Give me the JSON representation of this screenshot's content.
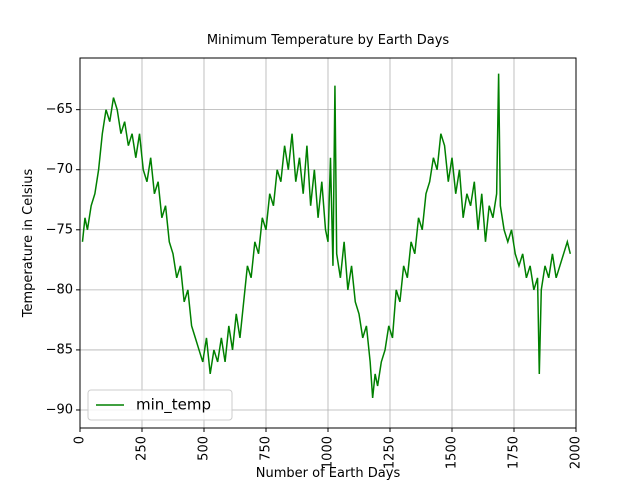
{
  "chart_data": {
    "type": "line",
    "title": "Minimum Temperature by Earth Days",
    "x_label": "Number of Earth Days",
    "y_label": "Temperature in Celsius",
    "xlim": [
      0,
      2000
    ],
    "xticks": [
      0,
      250,
      500,
      750,
      1000,
      1250,
      1500,
      1750,
      2000
    ],
    "ylim": [
      -91.5,
      -60.7
    ],
    "yticks": [
      {
        "value": -90,
        "label": "−90"
      },
      {
        "value": -85,
        "label": "−85"
      },
      {
        "value": -80,
        "label": "−80"
      },
      {
        "value": -75,
        "label": "−75"
      },
      {
        "value": -70,
        "label": "−70"
      },
      {
        "value": -65,
        "label": "−65"
      }
    ],
    "grid": true,
    "legend": "lower left",
    "x": [
      10,
      20,
      30,
      45,
      60,
      75,
      90,
      105,
      120,
      135,
      150,
      165,
      180,
      195,
      210,
      225,
      240,
      255,
      270,
      285,
      300,
      315,
      330,
      345,
      360,
      375,
      390,
      405,
      420,
      435,
      450,
      465,
      480,
      495,
      510,
      525,
      540,
      555,
      570,
      585,
      600,
      615,
      630,
      645,
      660,
      675,
      690,
      705,
      720,
      735,
      750,
      765,
      780,
      795,
      810,
      825,
      840,
      855,
      870,
      885,
      900,
      915,
      930,
      945,
      960,
      975,
      990,
      1000,
      1010,
      1020,
      1028,
      1035,
      1050,
      1065,
      1080,
      1095,
      1110,
      1125,
      1140,
      1155,
      1170,
      1180,
      1190,
      1200,
      1215,
      1230,
      1245,
      1260,
      1275,
      1290,
      1305,
      1320,
      1335,
      1350,
      1365,
      1380,
      1395,
      1410,
      1425,
      1440,
      1455,
      1470,
      1485,
      1500,
      1515,
      1530,
      1545,
      1560,
      1575,
      1590,
      1605,
      1620,
      1635,
      1650,
      1665,
      1680,
      1688,
      1695,
      1710,
      1725,
      1740,
      1755,
      1770,
      1785,
      1800,
      1815,
      1830,
      1845,
      1852,
      1860,
      1875,
      1890,
      1905,
      1920,
      1935,
      1950,
      1965,
      1977
    ],
    "series": [
      {
        "name": "min_temp",
        "color": "#008000",
        "values": [
          -76,
          -74,
          -75,
          -73,
          -72,
          -70,
          -67,
          -65,
          -66,
          -64,
          -65,
          -67,
          -66,
          -68,
          -67,
          -69,
          -67,
          -70,
          -71,
          -69,
          -72,
          -71,
          -74,
          -73,
          -76,
          -77,
          -79,
          -78,
          -81,
          -80,
          -83,
          -84,
          -85,
          -86,
          -84,
          -87,
          -85,
          -86,
          -84,
          -86,
          -83,
          -85,
          -82,
          -84,
          -81,
          -78,
          -79,
          -76,
          -77,
          -74,
          -75,
          -72,
          -73,
          -70,
          -71,
          -68,
          -70,
          -67,
          -71,
          -69,
          -72,
          -68,
          -73,
          -70,
          -74,
          -71,
          -75,
          -76,
          -69,
          -78,
          -63,
          -77,
          -79,
          -76,
          -80,
          -78,
          -81,
          -82,
          -84,
          -83,
          -86,
          -89,
          -87,
          -88,
          -86,
          -85,
          -83,
          -84,
          -80,
          -81,
          -78,
          -79,
          -76,
          -77,
          -74,
          -75,
          -72,
          -71,
          -69,
          -70,
          -67,
          -68,
          -71,
          -69,
          -72,
          -70,
          -74,
          -72,
          -73,
          -71,
          -75,
          -72,
          -76,
          -73,
          -74,
          -72,
          -62,
          -73,
          -75,
          -76,
          -75,
          -77,
          -78,
          -77,
          -79,
          -78,
          -80,
          -79,
          -87,
          -80,
          -78,
          -79,
          -77,
          -79,
          -78,
          -77,
          -76,
          -77
        ]
      }
    ]
  }
}
